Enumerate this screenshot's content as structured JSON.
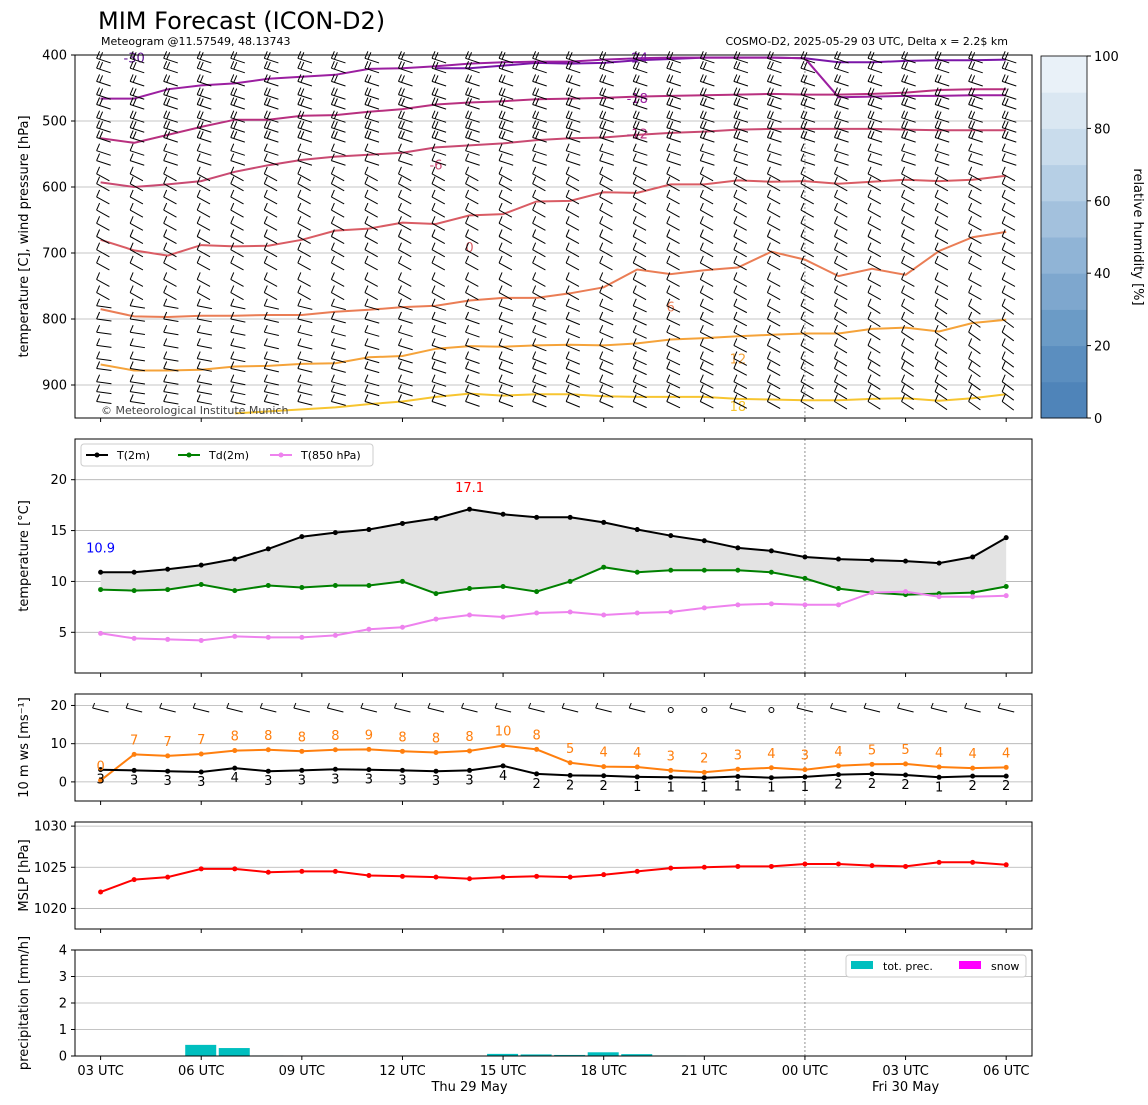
{
  "header": {
    "title": "MIM Forecast (ICON-D2)",
    "subtitle_left": "Meteogram @11.57549, 48.13743",
    "subtitle_right": "COSMO-D2, 2025-05-29 03 UTC, Delta x = 2.2$ km",
    "copyright": "© Meteorological Institute Munich"
  },
  "time_axis": {
    "tick_labels": [
      "03 UTC",
      "06 UTC",
      "09 UTC",
      "12 UTC",
      "15 UTC",
      "18 UTC",
      "21 UTC",
      "00 UTC",
      "03 UTC",
      "06 UTC"
    ],
    "date_labels": [
      "Thu 29 May",
      "Fri 30 May"
    ],
    "midnight_index": 21
  },
  "chart_data": [
    {
      "type": "line",
      "panel": "upper-air",
      "ylabel": "temperature [C], wind pressure [hPa]",
      "yticks": [
        400,
        500,
        600,
        700,
        800,
        900
      ],
      "ylim": [
        950,
        400
      ],
      "colorbar": {
        "label": "relative humidity [%]",
        "ticks": [
          0,
          20,
          40,
          60,
          80,
          100
        ]
      },
      "isotherms": [
        {
          "label": "-30",
          "color": "#5b0a8f",
          "values": [
            400,
            null,
            null,
            null,
            null,
            null,
            null,
            null,
            null,
            null,
            null,
            null,
            null,
            null,
            null,
            null,
            null,
            null,
            null,
            null,
            null,
            null,
            null,
            null,
            null,
            null,
            null,
            null
          ]
        },
        {
          "label": "-24",
          "color": "#7a16a8",
          "values": [
            null,
            null,
            null,
            null,
            null,
            null,
            null,
            null,
            null,
            null,
            420,
            420,
            416,
            412,
            413,
            412,
            408,
            406,
            404,
            404,
            404,
            405,
            411,
            411,
            409,
            408,
            408,
            407
          ]
        },
        {
          "label": "-18",
          "color": "#9b1fa0",
          "values": [
            466,
            466,
            452,
            446,
            443,
            436,
            433,
            430,
            421,
            420,
            417,
            413,
            411,
            410,
            410,
            407,
            405,
            404,
            404,
            404,
            404,
            405,
            464,
            463,
            462,
            462,
            461,
            461
          ]
        },
        {
          "label": "-12",
          "color": "#b8307f",
          "values": [
            526,
            533,
            521,
            509,
            498,
            498,
            492,
            491,
            486,
            482,
            475,
            472,
            470,
            467,
            466,
            465,
            463,
            462,
            461,
            460,
            459,
            460,
            460,
            459,
            457,
            453,
            452,
            452
          ]
        },
        {
          "label": "-6",
          "color": "#c94a72",
          "values": [
            593,
            600,
            596,
            591,
            577,
            567,
            559,
            554,
            551,
            548,
            540,
            537,
            534,
            529,
            526,
            525,
            521,
            518,
            516,
            513,
            512,
            512,
            512,
            512,
            513,
            514,
            514,
            514
          ]
        },
        {
          "label": "0",
          "color": "#d95c64",
          "values": [
            680,
            696,
            704,
            688,
            690,
            689,
            680,
            666,
            663,
            654,
            656,
            643,
            641,
            622,
            621,
            608,
            609,
            596,
            596,
            590,
            592,
            591,
            595,
            592,
            589,
            591,
            589,
            583
          ]
        },
        {
          "label": "6",
          "color": "#ea7d55",
          "values": [
            785,
            796,
            797,
            795,
            795,
            794,
            794,
            789,
            786,
            782,
            780,
            772,
            768,
            768,
            761,
            752,
            725,
            732,
            726,
            722,
            698,
            710,
            735,
            724,
            733,
            697,
            676,
            668
          ]
        },
        {
          "label": "12",
          "color": "#f5a33a",
          "values": [
            869,
            878,
            878,
            877,
            872,
            871,
            868,
            867,
            858,
            856,
            845,
            841,
            842,
            840,
            839,
            840,
            837,
            831,
            829,
            826,
            824,
            822,
            822,
            815,
            813,
            819,
            806,
            801
          ]
        },
        {
          "label": "18",
          "color": "#f7c530",
          "values": [
            null,
            null,
            null,
            null,
            943,
            940,
            937,
            934,
            929,
            925,
            918,
            913,
            916,
            914,
            914,
            917,
            918,
            918,
            918,
            921,
            922,
            923,
            923,
            921,
            920,
            924,
            920,
            914
          ]
        }
      ],
      "wind_barbs": "pressure-level wind barbs at each time step"
    },
    {
      "type": "line",
      "panel": "2m-temperature",
      "ylabel": "temperature [$^\\circ$C]",
      "yticks": [
        5,
        10,
        15,
        20
      ],
      "ylim": [
        1,
        24
      ],
      "legend": [
        "T(2m)",
        "Td(2m)",
        "T(850 hPa)"
      ],
      "legend_placement": "top-left",
      "min_label": "10.9",
      "max_label": "17.1",
      "series": [
        {
          "name": "T(2m)",
          "color": "#000000",
          "values": [
            10.9,
            10.9,
            11.2,
            11.6,
            12.2,
            13.2,
            14.4,
            14.8,
            15.1,
            15.7,
            16.2,
            17.1,
            16.6,
            16.3,
            16.3,
            15.8,
            15.1,
            14.5,
            14.0,
            13.3,
            13.0,
            12.4,
            12.2,
            12.1,
            12.0,
            11.8,
            12.4,
            14.3
          ]
        },
        {
          "name": "Td(2m)",
          "color": "#008000",
          "values": [
            9.2,
            9.1,
            9.2,
            9.7,
            9.1,
            9.6,
            9.4,
            9.6,
            9.6,
            10.0,
            8.8,
            9.3,
            9.5,
            9.0,
            10.0,
            11.4,
            10.9,
            11.1,
            11.1,
            11.1,
            10.9,
            10.3,
            9.3,
            8.9,
            8.7,
            8.8,
            8.9,
            9.5
          ]
        },
        {
          "name": "T(850 hPa)",
          "color": "#ee82ee",
          "values": [
            4.9,
            4.4,
            4.3,
            4.2,
            4.6,
            4.5,
            4.5,
            4.7,
            5.3,
            5.5,
            6.3,
            6.7,
            6.5,
            6.9,
            7.0,
            6.7,
            6.9,
            7.0,
            7.4,
            7.7,
            7.8,
            7.7,
            7.7,
            8.9,
            9.0,
            8.5,
            8.5,
            8.6
          ]
        }
      ]
    },
    {
      "type": "line",
      "panel": "10m-wind",
      "ylabel": "10 m ws [ms$^{-1}$]",
      "yticks": [
        0,
        10,
        20
      ],
      "ylim": [
        -5,
        23
      ],
      "series": [
        {
          "name": "gust",
          "color": "#ff7f0e",
          "values": [
            0.4,
            7.2,
            6.8,
            7.3,
            8.2,
            8.4,
            8.0,
            8.4,
            8.5,
            8.0,
            7.7,
            8.1,
            9.5,
            8.5,
            5.0,
            4.0,
            3.9,
            3.0,
            2.5,
            3.3,
            3.7,
            3.2,
            4.2,
            4.6,
            4.7,
            3.9,
            3.6,
            3.8
          ],
          "labels": [
            "0",
            "7",
            "7",
            "7",
            "8",
            "8",
            "8",
            "8",
            "9",
            "8",
            "8",
            "8",
            "10",
            "8",
            "5",
            "4",
            "4",
            "3",
            "2",
            "3",
            "4",
            "3",
            "4",
            "5",
            "5",
            "4",
            "4",
            "4"
          ]
        },
        {
          "name": "mean",
          "color": "#000000",
          "values": [
            3.2,
            3.0,
            2.8,
            2.6,
            3.6,
            2.8,
            3.0,
            3.3,
            3.2,
            3.0,
            2.8,
            3.0,
            4.2,
            2.1,
            1.7,
            1.6,
            1.3,
            1.2,
            1.1,
            1.4,
            1.1,
            1.3,
            1.9,
            2.1,
            1.8,
            1.2,
            1.5,
            1.5
          ],
          "labels": [
            "3",
            "3",
            "3",
            "3",
            "4",
            "3",
            "3",
            "3",
            "3",
            "3",
            "3",
            "3",
            "4",
            "2",
            "2",
            "2",
            "1",
            "1",
            "1",
            "1",
            "1",
            "1",
            "2",
            "2",
            "2",
            "1",
            "2",
            "2"
          ]
        }
      ]
    },
    {
      "type": "line",
      "panel": "mslp",
      "ylabel": "MSLP [hPa]",
      "yticks": [
        1020,
        1025,
        1030
      ],
      "ylim": [
        1017.5,
        1030.5
      ],
      "series": [
        {
          "name": "MSLP",
          "color": "#ff0000",
          "values": [
            1022.0,
            1023.5,
            1023.8,
            1024.8,
            1024.8,
            1024.4,
            1024.5,
            1024.5,
            1024.0,
            1023.9,
            1023.8,
            1023.6,
            1023.8,
            1023.9,
            1023.8,
            1024.1,
            1024.5,
            1024.9,
            1025.0,
            1025.1,
            1025.1,
            1025.4,
            1025.4,
            1025.2,
            1025.1,
            1025.6,
            1025.6,
            1025.3
          ]
        }
      ]
    },
    {
      "type": "bar",
      "panel": "precipitation",
      "ylabel": "precipitation [mm/h]",
      "yticks": [
        0,
        1,
        2,
        3,
        4
      ],
      "ylim": [
        0,
        4
      ],
      "legend": [
        "tot. prec.",
        "snow"
      ],
      "legend_placement": "top-right",
      "series": [
        {
          "name": "tot. prec.",
          "color": "#00bfbf",
          "values": [
            0,
            0,
            0,
            0.42,
            0.3,
            0.02,
            0,
            0.02,
            0,
            0,
            0,
            0,
            0.08,
            0.06,
            0.04,
            0.14,
            0.07,
            0.02,
            0,
            0,
            0,
            0,
            0,
            0,
            0,
            0,
            0,
            0
          ]
        },
        {
          "name": "snow",
          "color": "#ff00ff",
          "values": [
            0,
            0,
            0,
            0,
            0,
            0,
            0,
            0,
            0,
            0,
            0,
            0,
            0,
            0,
            0,
            0,
            0,
            0,
            0,
            0,
            0,
            0,
            0,
            0,
            0,
            0,
            0,
            0
          ]
        }
      ]
    }
  ]
}
